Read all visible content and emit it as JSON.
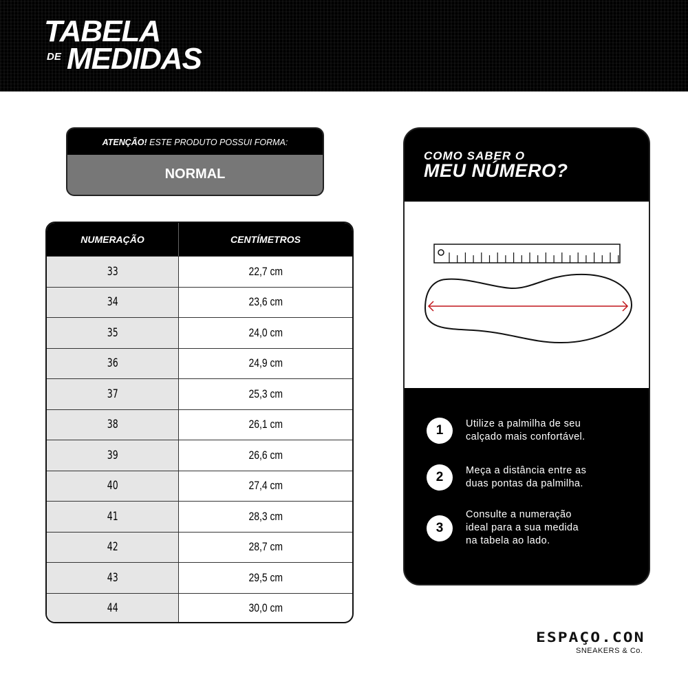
{
  "header": {
    "title_line1": "TABELA",
    "title_de": "DE",
    "title_line2": "MEDIDAS"
  },
  "notice": {
    "label_bold": "ATENÇÃO!",
    "label_rest": " ESTE PRODUTO POSSUI FORMA:",
    "value": "NORMAL"
  },
  "table": {
    "columns": [
      "NUMERAÇÃO",
      "CENTÍMETROS"
    ],
    "rows": [
      [
        "33",
        "22,7 cm"
      ],
      [
        "34",
        "23,6 cm"
      ],
      [
        "35",
        "24,0 cm"
      ],
      [
        "36",
        "24,9 cm"
      ],
      [
        "37",
        "25,3 cm"
      ],
      [
        "38",
        "26,1 cm"
      ],
      [
        "39",
        "26,6 cm"
      ],
      [
        "40",
        "27,4 cm"
      ],
      [
        "41",
        "28,3 cm"
      ],
      [
        "42",
        "28,7 cm"
      ],
      [
        "43",
        "29,5 cm"
      ],
      [
        "44",
        "30,0 cm"
      ]
    ]
  },
  "guide": {
    "title_line1": "COMO SABER O",
    "title_line2": "MEU NÚMERO?",
    "illustration": {
      "icons": [
        "ruler-icon",
        "insole-icon",
        "measure-arrow-icon"
      ],
      "arrow_color": "#c0151a"
    },
    "steps": [
      {
        "number": "1",
        "lines": [
          "Utilize a palmilha de seu",
          "calçado mais confortável."
        ]
      },
      {
        "number": "2",
        "lines": [
          "Meça a distância entre as",
          "duas pontas da palmilha."
        ]
      },
      {
        "number": "3",
        "lines": [
          "Consulte a numeração",
          "ideal para a sua medida",
          "na tabela ao lado."
        ]
      }
    ]
  },
  "brand": {
    "name": "ESPAÇO.CON",
    "tagline": "SNEAKERS & Co."
  },
  "colors": {
    "black": "#000000",
    "gray": "#777777",
    "cell_gray": "#e6e6e6"
  }
}
